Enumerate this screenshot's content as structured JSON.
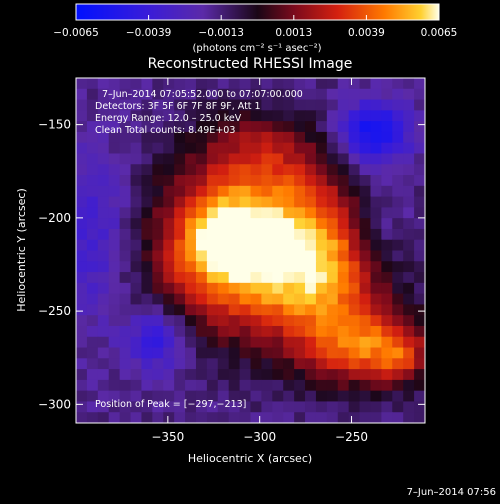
{
  "chart_data": {
    "type": "heatmap",
    "title": "Reconstructed RHESSI Image",
    "xlabel": "Heliocentric X (arcsec)",
    "ylabel": "Heliocentric Y (arcsec)",
    "xlim": [
      -400,
      -210
    ],
    "ylim": [
      -310,
      -125
    ],
    "xticks": [
      -350,
      -300,
      -250
    ],
    "yticks": [
      -150,
      -200,
      -250,
      -300
    ],
    "xtick_labels": [
      "−350",
      "−300",
      "−250"
    ],
    "ytick_labels": [
      "−150",
      "−200",
      "−250",
      "−300"
    ],
    "colorbar": {
      "range": [
        -0.0065,
        0.0065
      ],
      "ticks": [
        -0.0065,
        -0.0039,
        -0.0013,
        0.0013,
        0.0039,
        0.0065
      ],
      "tick_labels": [
        "−0.0065",
        "−0.0039",
        "−0.0013",
        "0.0013",
        "0.0039",
        "0.0065"
      ],
      "unit_label": "(photons cm⁻² s⁻¹ asec⁻²)"
    },
    "annotations": {
      "time_range": "7–Jun–2014 07:05:52.000 to 07:07:00.000",
      "detectors": "Detectors: 3F 5F 6F 7F 8F 9F, Att 1",
      "energy": "Energy Range: 12.0 – 25.0 keV",
      "clean": "Clean      Total counts: 8.49E+03",
      "peak": "Position of Peak = [−297,−213]"
    },
    "sources": [
      {
        "x": -300,
        "y": -215,
        "sx": 40,
        "sy": 32,
        "amp": 1.0
      },
      {
        "x": -318,
        "y": -212,
        "sx": 16,
        "sy": 16,
        "amp": 0.35
      },
      {
        "x": -262,
        "y": -238,
        "sx": 22,
        "sy": 28,
        "amp": 0.35
      },
      {
        "x": -240,
        "y": -270,
        "sx": 22,
        "sy": 14,
        "amp": 0.55
      },
      {
        "x": -222,
        "y": -275,
        "sx": 10,
        "sy": 10,
        "amp": 0.25
      },
      {
        "x": -300,
        "y": -162,
        "sx": 22,
        "sy": 14,
        "amp": 0.25
      },
      {
        "x": -356,
        "y": -265,
        "sx": 12,
        "sy": 12,
        "amp": -0.4
      },
      {
        "x": -238,
        "y": -155,
        "sx": 14,
        "sy": 12,
        "amp": -0.55
      },
      {
        "x": -390,
        "y": -210,
        "sx": 18,
        "sy": 30,
        "amp": -0.3
      },
      {
        "x": -235,
        "y": -205,
        "sx": 14,
        "sy": 20,
        "amp": -0.25
      }
    ]
  },
  "footer": {
    "timestamp": "7–Jun–2014 07:56"
  }
}
